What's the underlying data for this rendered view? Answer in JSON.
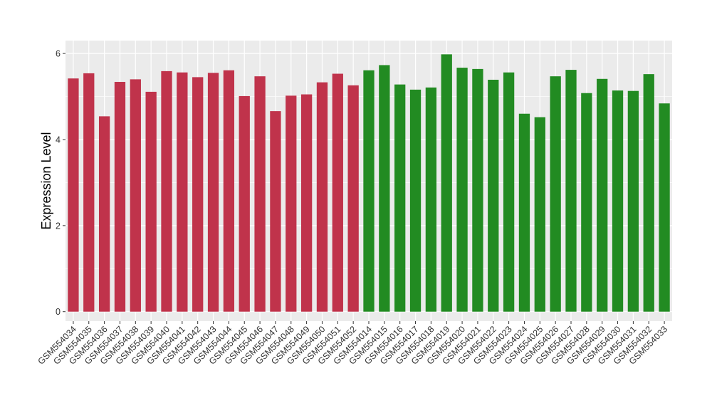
{
  "chart_data": {
    "type": "bar",
    "title": "",
    "xlabel": "",
    "ylabel": "Expression Level",
    "ylim": [
      -0.22,
      6.3
    ],
    "yticks": [
      0,
      2,
      4,
      6
    ],
    "grid": true,
    "categories": [
      "GSM554034",
      "GSM554035",
      "GSM554036",
      "GSM554037",
      "GSM554038",
      "GSM554039",
      "GSM554040",
      "GSM554041",
      "GSM554042",
      "GSM554043",
      "GSM554044",
      "GSM554045",
      "GSM554046",
      "GSM554047",
      "GSM554048",
      "GSM554049",
      "GSM554050",
      "GSM554051",
      "GSM554052",
      "GSM554014",
      "GSM554015",
      "GSM554016",
      "GSM554017",
      "GSM554018",
      "GSM554019",
      "GSM554020",
      "GSM554021",
      "GSM554022",
      "GSM554023",
      "GSM554024",
      "GSM554025",
      "GSM554026",
      "GSM554027",
      "GSM554028",
      "GSM554029",
      "GSM554030",
      "GSM554031",
      "GSM554032",
      "GSM554033"
    ],
    "values": [
      5.42,
      5.54,
      4.54,
      5.34,
      5.4,
      5.11,
      5.59,
      5.56,
      5.45,
      5.55,
      5.61,
      5.01,
      5.47,
      4.66,
      5.02,
      5.05,
      5.33,
      5.53,
      5.26,
      5.61,
      5.73,
      5.28,
      5.16,
      5.21,
      5.98,
      5.67,
      5.64,
      5.39,
      5.56,
      4.6,
      4.52,
      5.47,
      5.62,
      5.08,
      5.41,
      5.14,
      5.13,
      5.52,
      4.84
    ],
    "colors": [
      "#c0334b",
      "#c0334b",
      "#c0334b",
      "#c0334b",
      "#c0334b",
      "#c0334b",
      "#c0334b",
      "#c0334b",
      "#c0334b",
      "#c0334b",
      "#c0334b",
      "#c0334b",
      "#c0334b",
      "#c0334b",
      "#c0334b",
      "#c0334b",
      "#c0334b",
      "#c0334b",
      "#c0334b",
      "#228b22",
      "#228b22",
      "#228b22",
      "#228b22",
      "#228b22",
      "#228b22",
      "#228b22",
      "#228b22",
      "#228b22",
      "#228b22",
      "#228b22",
      "#228b22",
      "#228b22",
      "#228b22",
      "#228b22",
      "#228b22",
      "#228b22",
      "#228b22",
      "#228b22",
      "#228b22"
    ],
    "panel_background": "#ebebeb",
    "grid_color": "#ffffff"
  }
}
